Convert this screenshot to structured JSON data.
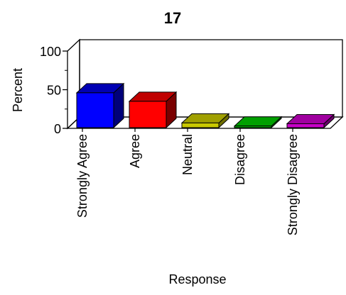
{
  "chart_data": {
    "type": "bar",
    "title": "17",
    "xlabel": "Response",
    "ylabel": "Percent",
    "categories": [
      "Strongly Agree",
      "Agree",
      "Neutral",
      "Disagree",
      "Strongly Disagree"
    ],
    "values": [
      46,
      35,
      7,
      3,
      6
    ],
    "ylim": [
      0,
      100
    ],
    "yticks": [
      "0",
      "50",
      "100"
    ],
    "grid": false,
    "legend": "none",
    "bar_colors": [
      {
        "front": "#0000ff",
        "top": "#0000b4",
        "side": "#00007a"
      },
      {
        "front": "#ff0000",
        "top": "#c00000",
        "side": "#7a0000"
      },
      {
        "front": "#c8c800",
        "top": "#a0a000",
        "side": "#6e6e00"
      },
      {
        "front": "#00c800",
        "top": "#00a000",
        "side": "#006e00"
      },
      {
        "front": "#c800c8",
        "top": "#a000a0",
        "side": "#6e006e"
      }
    ]
  }
}
